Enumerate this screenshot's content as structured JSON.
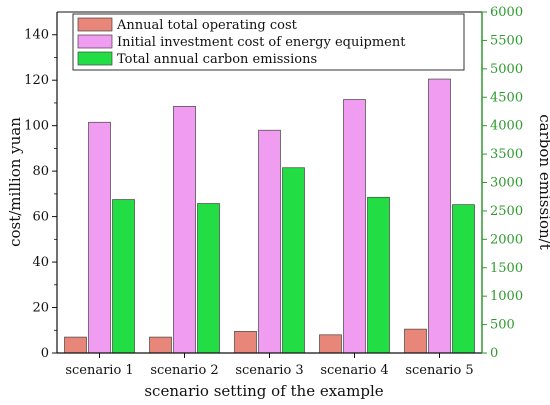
{
  "chart_data": {
    "type": "bar",
    "categories": [
      "scenario 1",
      "scenario 2",
      "scenario 3",
      "scenario 4",
      "scenario 5"
    ],
    "xlabel": "scenario setting of the example",
    "ylabel": "cost/million yuan",
    "ylabel_right": "carbon emission/t",
    "ylim": [
      0,
      150
    ],
    "ylim_right": [
      0,
      6000
    ],
    "yticks": [
      0,
      20,
      40,
      60,
      80,
      100,
      120,
      140
    ],
    "yticks_right": [
      0,
      500,
      1000,
      1500,
      2000,
      2500,
      3000,
      3500,
      4000,
      4500,
      5000,
      5500,
      6000
    ],
    "legend_position": "top",
    "series": [
      {
        "name": "Annual total operating cost",
        "axis": "left",
        "color": "#e8867a",
        "values": [
          7,
          7,
          9.5,
          8,
          10.5
        ]
      },
      {
        "name": "Initial investment cost of energy equipment",
        "axis": "left",
        "color": "#f09cf0",
        "values": [
          101.5,
          108.5,
          98,
          111.5,
          120.5
        ]
      },
      {
        "name": "Total annual carbon emissions",
        "axis": "right",
        "color": "#22dd44",
        "values": [
          2700,
          2630,
          3260,
          2740,
          2610
        ]
      }
    ]
  }
}
